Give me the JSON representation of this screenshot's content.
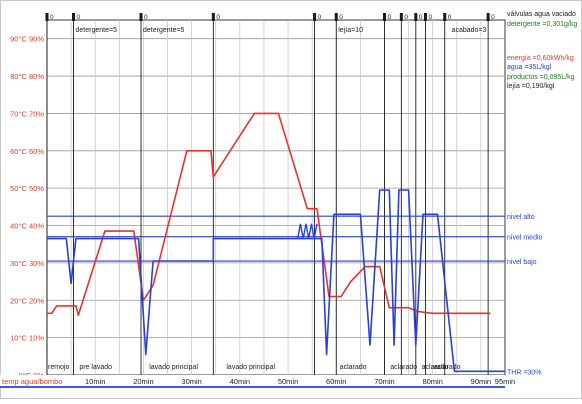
{
  "chart_data": {
    "type": "line",
    "y_left_ticks": [
      "0°C 0%",
      "10°C 10%",
      "20°C 20%",
      "30°C 30%",
      "40°C 40%",
      "50°C 50%",
      "60°C 60%",
      "70°C 70%",
      "80°C 80%",
      "90°C 90%"
    ],
    "x_ticks": [
      {
        "t": 10,
        "label": "10min"
      },
      {
        "t": 20,
        "label": "20min"
      },
      {
        "t": 30,
        "label": "30min"
      },
      {
        "t": 40,
        "label": "40min"
      },
      {
        "t": 50,
        "label": "50min"
      },
      {
        "t": 60,
        "label": "60min"
      },
      {
        "t": 70,
        "label": "70min"
      },
      {
        "t": 80,
        "label": "80min"
      },
      {
        "t": 90,
        "label": "90min"
      },
      {
        "t": 95,
        "label": "95min"
      }
    ],
    "x_axis_prefix": "temp agua/bombo",
    "phases": [
      {
        "t": 0,
        "label": "remojo"
      },
      {
        "t": 6.5,
        "label": "pre lavado"
      },
      {
        "t": 21,
        "label": "lavado principal"
      },
      {
        "t": 37,
        "label": "lavado principal"
      },
      {
        "t": 60.5,
        "label": "aclarado"
      },
      {
        "t": 71,
        "label": "aclarado"
      },
      {
        "t": 77.5,
        "label": "aclarado"
      },
      {
        "t": 80,
        "label": "aclarado"
      }
    ],
    "steps": [
      {
        "t": 5.5,
        "label": "detergente=5"
      },
      {
        "t": 19.5,
        "label": "detergente=5"
      },
      {
        "t": 60,
        "label": "lejía=10"
      },
      {
        "t": 83.5,
        "label": "acabado=3"
      }
    ],
    "valve_times": [
      0,
      5.5,
      19.5,
      34.5,
      55.5,
      60,
      70,
      73.5,
      76.5,
      78.5,
      82.5,
      91.5
    ],
    "water_levels": [
      {
        "y": 42.5,
        "label": "nivel alto"
      },
      {
        "y": 37,
        "label": "nivel medio"
      },
      {
        "y": 30.5,
        "label": "nivel bajo"
      }
    ],
    "legend_right": [
      {
        "text": "válvulas agua vaciado",
        "color": "#1a1a1a"
      },
      {
        "text": "detergente =0,301g/kg",
        "color": "#1e7a1e"
      },
      {
        "text": "energía =0,60kWh/kg",
        "color": "#e03a2a"
      },
      {
        "text": "agua =35L/kgl",
        "color": "#1f3fd0"
      },
      {
        "text": "productos =0,095L/kg",
        "color": "#1e7a1e"
      },
      {
        "text": "lejía =0,190/kgl",
        "color": "#1a1a1a"
      }
    ],
    "thr_label": "THR =30%",
    "series": [
      {
        "color": "#e8322a",
        "points": [
          [
            0,
            16.5
          ],
          [
            1,
            16.5
          ],
          [
            2,
            18.5
          ],
          [
            6,
            18.5
          ],
          [
            6.5,
            16
          ],
          [
            12,
            38.5
          ],
          [
            18,
            38.5
          ],
          [
            20,
            20
          ],
          [
            22,
            24
          ],
          [
            29,
            60
          ],
          [
            34,
            60
          ],
          [
            34.5,
            53
          ],
          [
            43,
            70
          ],
          [
            48,
            70
          ],
          [
            54,
            44.5
          ],
          [
            56,
            44.5
          ],
          [
            58.5,
            21
          ],
          [
            61,
            21
          ],
          [
            63,
            25
          ],
          [
            66,
            29
          ],
          [
            69,
            29
          ],
          [
            71,
            18
          ],
          [
            75,
            18
          ],
          [
            77,
            17
          ],
          [
            80,
            16.5
          ],
          [
            92,
            16.5
          ]
        ]
      },
      {
        "color": "#2940d8",
        "points": [
          [
            0,
            36.5
          ],
          [
            4,
            36.5
          ],
          [
            5,
            24.5
          ],
          [
            6,
            36.5
          ],
          [
            19,
            36.5
          ],
          [
            20.5,
            5.5
          ],
          [
            22,
            30.5
          ],
          [
            34.5,
            30.5
          ],
          [
            34.5,
            36.5
          ],
          [
            57,
            36.5
          ],
          [
            58,
            5.5
          ],
          [
            59.5,
            43
          ],
          [
            65,
            43
          ],
          [
            67,
            8
          ],
          [
            69,
            49.5
          ],
          [
            71,
            49.5
          ],
          [
            72,
            8
          ],
          [
            73,
            49.5
          ],
          [
            75,
            49.5
          ],
          [
            76.5,
            8
          ],
          [
            78,
            43
          ],
          [
            81,
            43
          ],
          [
            84.5,
            1
          ],
          [
            88,
            1
          ]
        ]
      }
    ],
    "ripple": {
      "t0": 52,
      "t1": 56,
      "y_low": 36.5,
      "y_high": 40.5
    }
  }
}
